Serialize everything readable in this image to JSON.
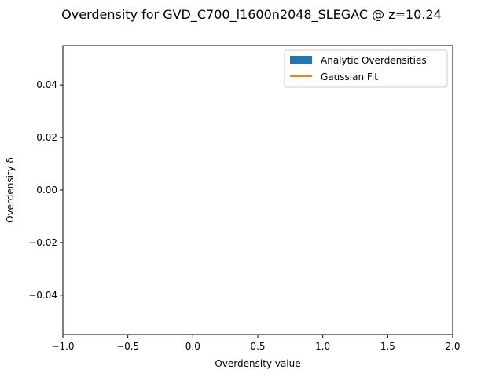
{
  "chart_data": {
    "type": "bar",
    "title": "Overdensity for GVD_C700_l1600n2048_SLEGAC @ z=10.24",
    "xlabel": "Overdensity value",
    "ylabel": "Overdensity δ",
    "xlim": [
      -1.0,
      2.0
    ],
    "ylim": [
      -0.055,
      0.055
    ],
    "xticks": [
      -1.0,
      -0.5,
      0.0,
      0.5,
      1.0,
      1.5,
      2.0
    ],
    "xtick_labels": [
      "−1.0",
      "−0.5",
      "0.0",
      "0.5",
      "1.0",
      "1.5",
      "2.0"
    ],
    "yticks": [
      -0.04,
      -0.02,
      0.0,
      0.02,
      0.04
    ],
    "ytick_labels": [
      "−0.04",
      "−0.02",
      "0.00",
      "0.02",
      "0.04"
    ],
    "grid": false,
    "legend_position": "top-right",
    "series": [
      {
        "name": "Analytic Overdensities",
        "kind": "bar",
        "color": "#1f77b4",
        "values": []
      },
      {
        "name": "Gaussian Fit",
        "kind": "line",
        "color": "#ff7f0e",
        "x": [],
        "y": []
      }
    ]
  }
}
